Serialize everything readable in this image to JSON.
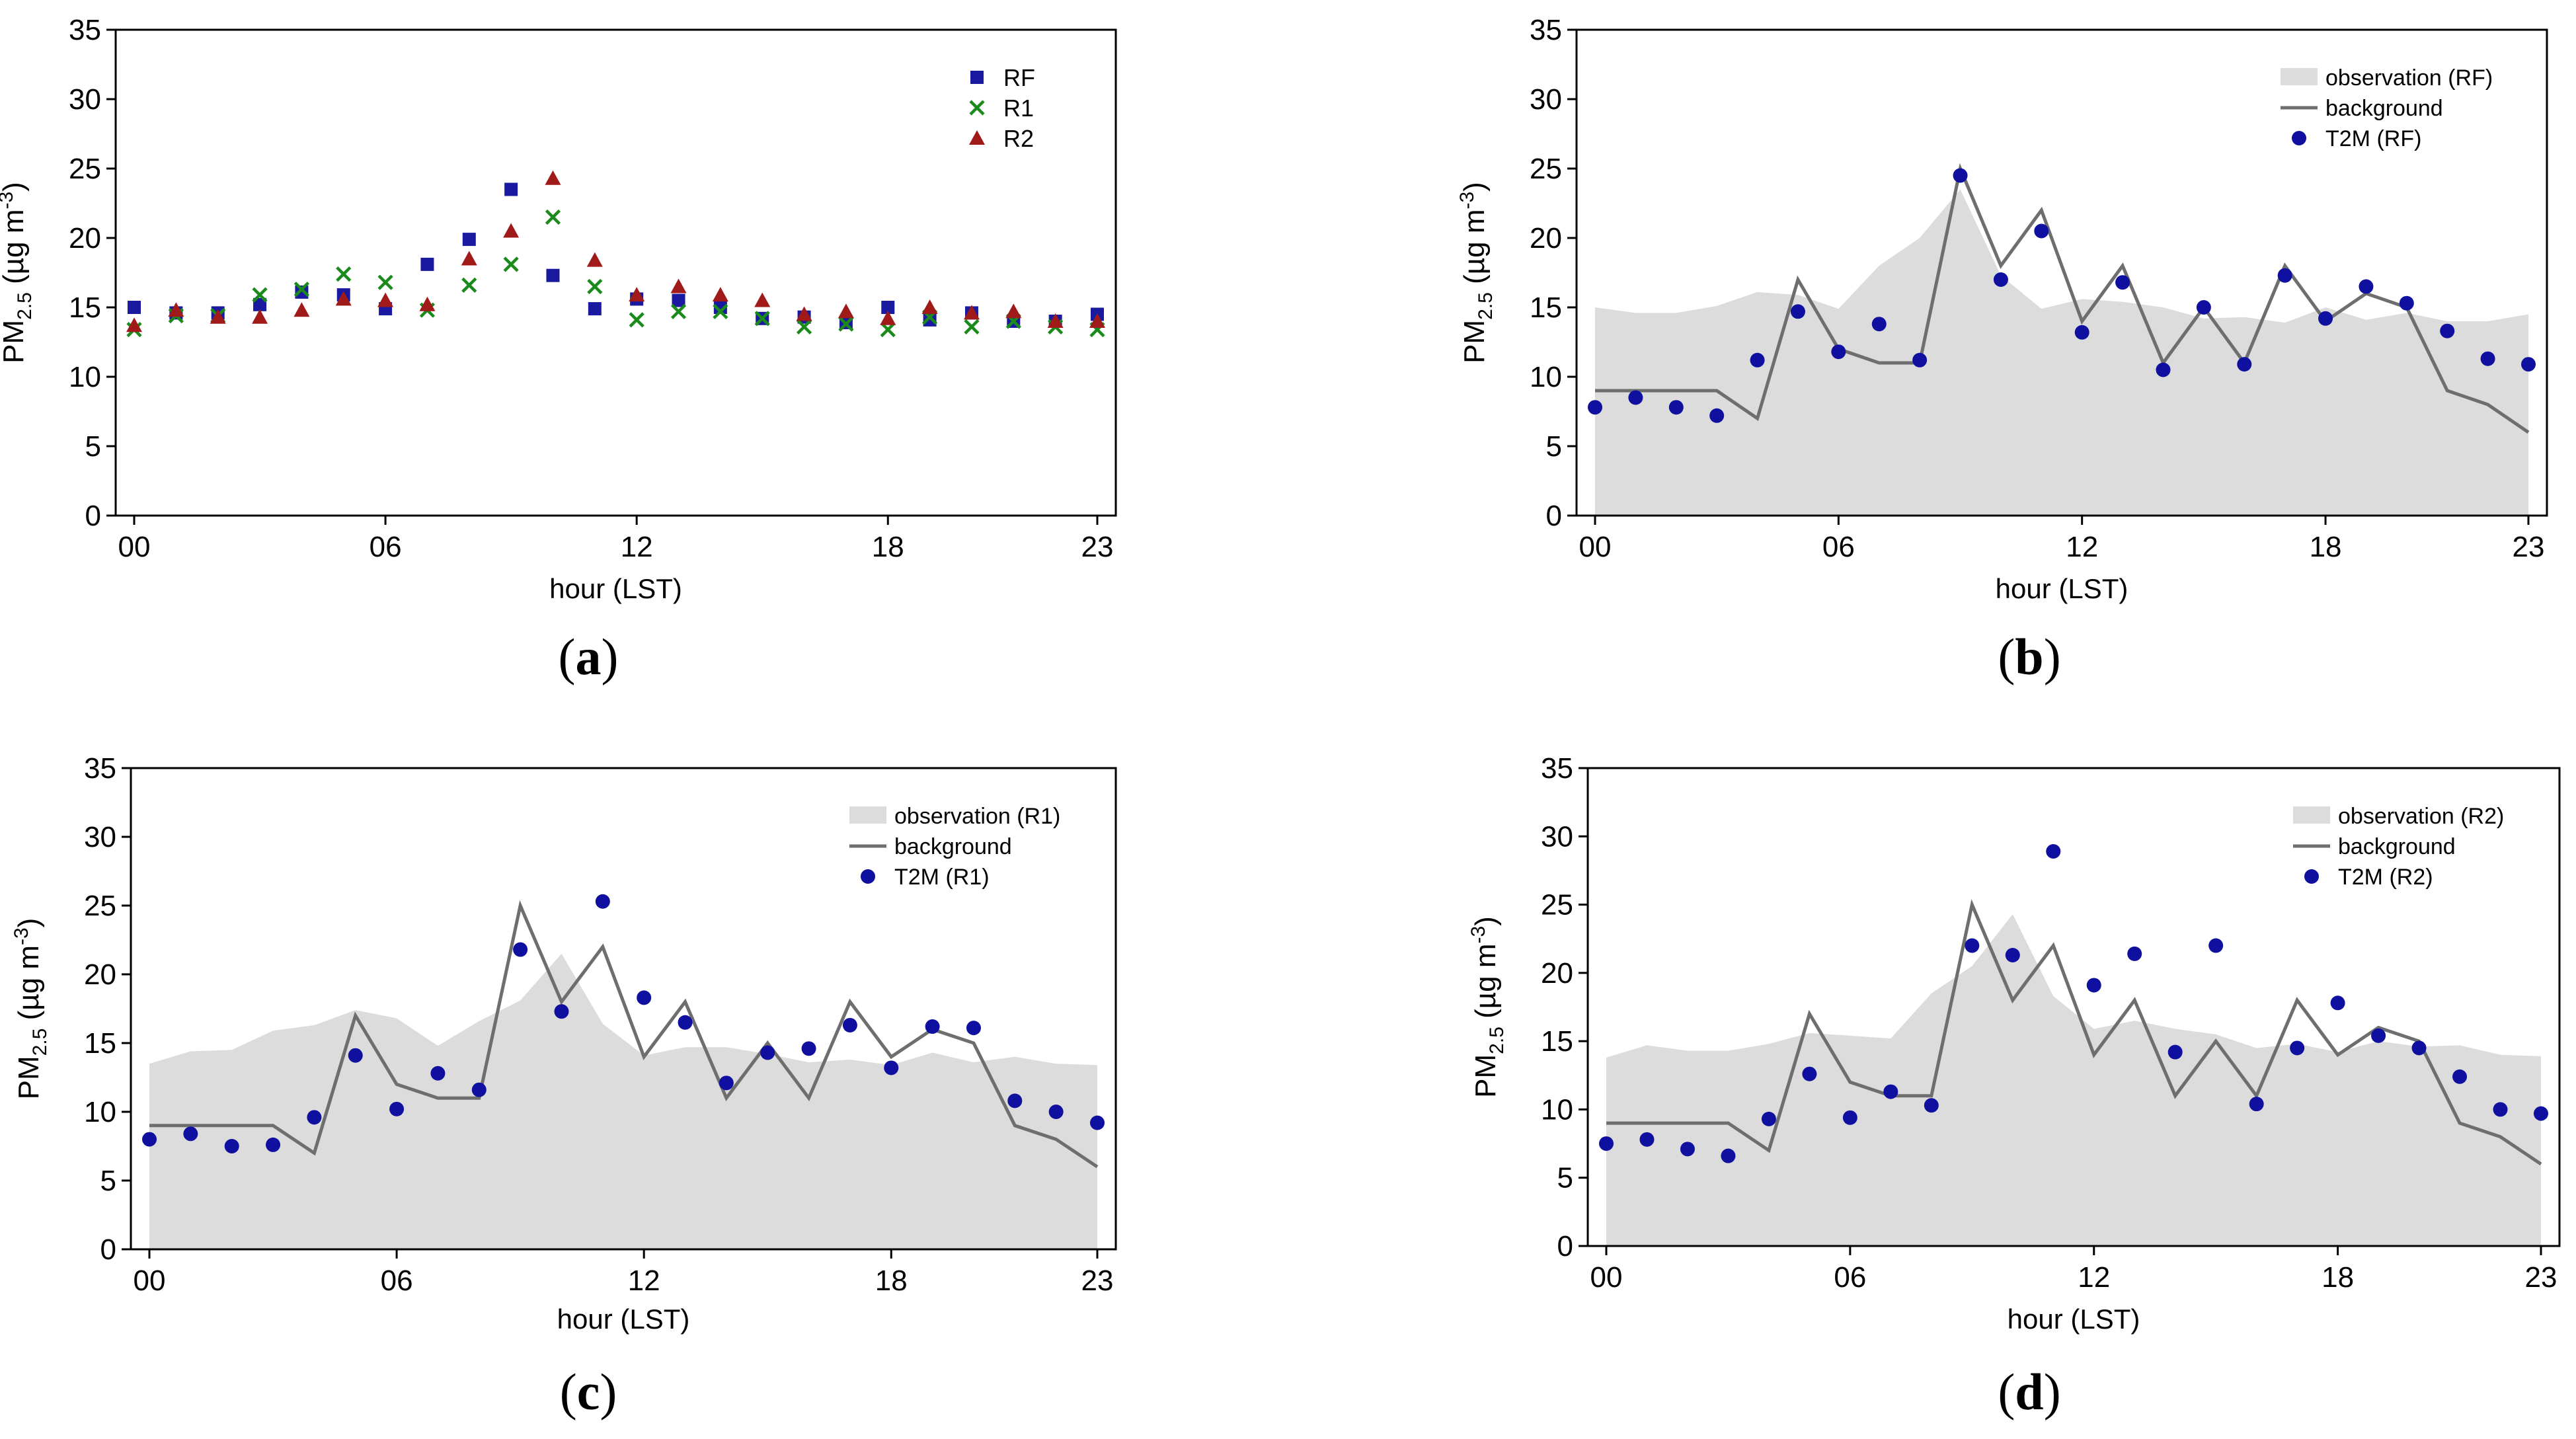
{
  "colors": {
    "rf": "#1a1aa0",
    "r1": "#1a8a1a",
    "r2": "#a01a1a",
    "t2m": "#1010a0",
    "observation": "#dcdcdc",
    "background": "#6e6e6e"
  },
  "chart_data": [
    {
      "type": "scatter",
      "panel_label": "(a)",
      "xlabel": "hour (LST)",
      "ylabel": {
        "main": "PM",
        "sub": "2.5",
        "unit_open": " (µg m",
        "unit_sup": "-3",
        "unit_close": ")"
      },
      "xlim": [
        0,
        23
      ],
      "ylim": [
        0,
        35
      ],
      "xticks": [
        0,
        6,
        12,
        18,
        23
      ],
      "xtick_labels": [
        "00",
        "06",
        "12",
        "18",
        "23"
      ],
      "yticks": [
        0,
        5,
        10,
        15,
        20,
        25,
        30,
        35
      ],
      "legend_position": "top-right",
      "legend": [
        "RF",
        "R1",
        "R2"
      ],
      "series": [
        {
          "name": "RF",
          "marker": "square",
          "color_key": "rf",
          "values": [
            15.0,
            14.6,
            14.6,
            15.2,
            16.1,
            15.9,
            14.9,
            18.1,
            19.9,
            23.5,
            17.3,
            14.9,
            15.6,
            15.5,
            15.0,
            14.2,
            14.3,
            13.9,
            15.0,
            14.1,
            14.6,
            14.0,
            14.0,
            14.5
          ]
        },
        {
          "name": "R1",
          "marker": "x",
          "color_key": "r1",
          "values": [
            13.4,
            14.4,
            14.4,
            15.9,
            16.3,
            17.4,
            16.8,
            14.8,
            16.6,
            18.1,
            21.5,
            16.5,
            14.1,
            14.7,
            14.7,
            14.2,
            13.6,
            13.8,
            13.4,
            14.3,
            13.6,
            14.0,
            13.6,
            13.4
          ]
        },
        {
          "name": "R2",
          "marker": "triangle",
          "color_key": "r2",
          "values": [
            13.7,
            14.8,
            14.3,
            14.3,
            14.8,
            15.6,
            15.5,
            15.2,
            18.5,
            20.5,
            24.3,
            18.4,
            15.9,
            16.5,
            15.9,
            15.5,
            14.5,
            14.7,
            14.2,
            15.0,
            14.6,
            14.7,
            14.0,
            14.0
          ]
        }
      ]
    },
    {
      "type": "area",
      "panel_label": "(b)",
      "xlabel": "hour (LST)",
      "ylabel": {
        "main": "PM",
        "sub": "2.5",
        "unit_open": " (µg m",
        "unit_sup": "-3",
        "unit_close": ")"
      },
      "xlim": [
        0,
        23
      ],
      "ylim": [
        0,
        35
      ],
      "xticks": [
        0,
        6,
        12,
        18,
        23
      ],
      "xtick_labels": [
        "00",
        "06",
        "12",
        "18",
        "23"
      ],
      "yticks": [
        0,
        5,
        10,
        15,
        20,
        25,
        30,
        35
      ],
      "legend_position": "top-right",
      "legend": [
        "observation (RF)",
        "background",
        "T2M (RF)"
      ],
      "observation": [
        15.0,
        14.6,
        14.6,
        15.1,
        16.1,
        15.9,
        14.9,
        18.0,
        20.0,
        23.5,
        17.3,
        14.9,
        15.6,
        15.4,
        15.0,
        14.2,
        14.3,
        13.9,
        15.0,
        14.1,
        14.6,
        14.0,
        14.0,
        14.5
      ],
      "background": [
        9,
        9,
        9,
        9,
        7,
        17,
        12,
        11,
        11,
        25,
        18,
        22,
        14,
        18,
        11,
        15,
        11,
        18,
        14,
        16,
        15,
        9,
        8,
        6
      ],
      "t2m": [
        7.8,
        8.5,
        7.8,
        7.2,
        11.2,
        14.7,
        11.8,
        13.8,
        11.2,
        24.5,
        17.0,
        20.5,
        13.2,
        16.8,
        10.5,
        15.0,
        10.9,
        17.3,
        14.2,
        16.5,
        15.3,
        13.3,
        11.3,
        10.9
      ]
    },
    {
      "type": "area",
      "panel_label": "(c)",
      "xlabel": "hour (LST)",
      "ylabel": {
        "main": "PM",
        "sub": "2.5",
        "unit_open": " (µg m",
        "unit_sup": "-3",
        "unit_close": ")"
      },
      "xlim": [
        0,
        23
      ],
      "ylim": [
        0,
        35
      ],
      "xticks": [
        0,
        6,
        12,
        18,
        23
      ],
      "xtick_labels": [
        "00",
        "06",
        "12",
        "18",
        "23"
      ],
      "yticks": [
        0,
        5,
        10,
        15,
        20,
        25,
        30,
        35
      ],
      "legend_position": "top-right",
      "legend": [
        "observation (R1)",
        "background",
        "T2M (R1)"
      ],
      "observation": [
        13.5,
        14.4,
        14.5,
        15.9,
        16.3,
        17.4,
        16.8,
        14.8,
        16.6,
        18.1,
        21.5,
        16.4,
        14.1,
        14.7,
        14.7,
        14.2,
        13.6,
        13.8,
        13.4,
        14.3,
        13.6,
        14.0,
        13.5,
        13.4
      ],
      "background": [
        9,
        9,
        9,
        9,
        7,
        17,
        12,
        11,
        11,
        25,
        18,
        22,
        14,
        18,
        11,
        15,
        11,
        18,
        14,
        16,
        15,
        9,
        8,
        6
      ],
      "t2m": [
        8.0,
        8.4,
        7.5,
        7.6,
        9.6,
        14.1,
        10.2,
        12.8,
        11.6,
        21.8,
        17.3,
        25.3,
        18.3,
        16.5,
        12.1,
        14.3,
        14.6,
        16.3,
        13.2,
        16.2,
        16.1,
        10.8,
        10.0,
        9.2
      ]
    },
    {
      "type": "area",
      "panel_label": "(d)",
      "xlabel": "hour (LST)",
      "ylabel": {
        "main": "PM",
        "sub": "2.5",
        "unit_open": " (µg m",
        "unit_sup": "-3",
        "unit_close": ")"
      },
      "xlim": [
        0,
        23
      ],
      "ylim": [
        0,
        35
      ],
      "xticks": [
        0,
        6,
        12,
        18,
        23
      ],
      "xtick_labels": [
        "00",
        "06",
        "12",
        "18",
        "23"
      ],
      "yticks": [
        0,
        5,
        10,
        15,
        20,
        25,
        30,
        35
      ],
      "legend_position": "top-right",
      "legend": [
        "observation (R2)",
        "background",
        "T2M (R2)"
      ],
      "observation": [
        13.8,
        14.7,
        14.3,
        14.3,
        14.8,
        15.6,
        15.4,
        15.2,
        18.5,
        20.5,
        24.3,
        18.3,
        15.9,
        16.5,
        15.9,
        15.5,
        14.5,
        14.8,
        14.2,
        15.0,
        14.6,
        14.7,
        14.0,
        13.9
      ],
      "background": [
        9,
        9,
        9,
        9,
        7,
        17,
        12,
        11,
        11,
        25,
        18,
        22,
        14,
        18,
        11,
        15,
        11,
        18,
        14,
        16,
        15,
        9,
        8,
        6
      ],
      "t2m": [
        7.5,
        7.8,
        7.1,
        6.6,
        9.3,
        12.6,
        9.4,
        11.3,
        10.3,
        22.0,
        21.3,
        28.9,
        19.1,
        21.4,
        14.2,
        22.0,
        10.4,
        14.5,
        17.8,
        15.4,
        14.5,
        12.4,
        10.0,
        9.7
      ]
    }
  ]
}
